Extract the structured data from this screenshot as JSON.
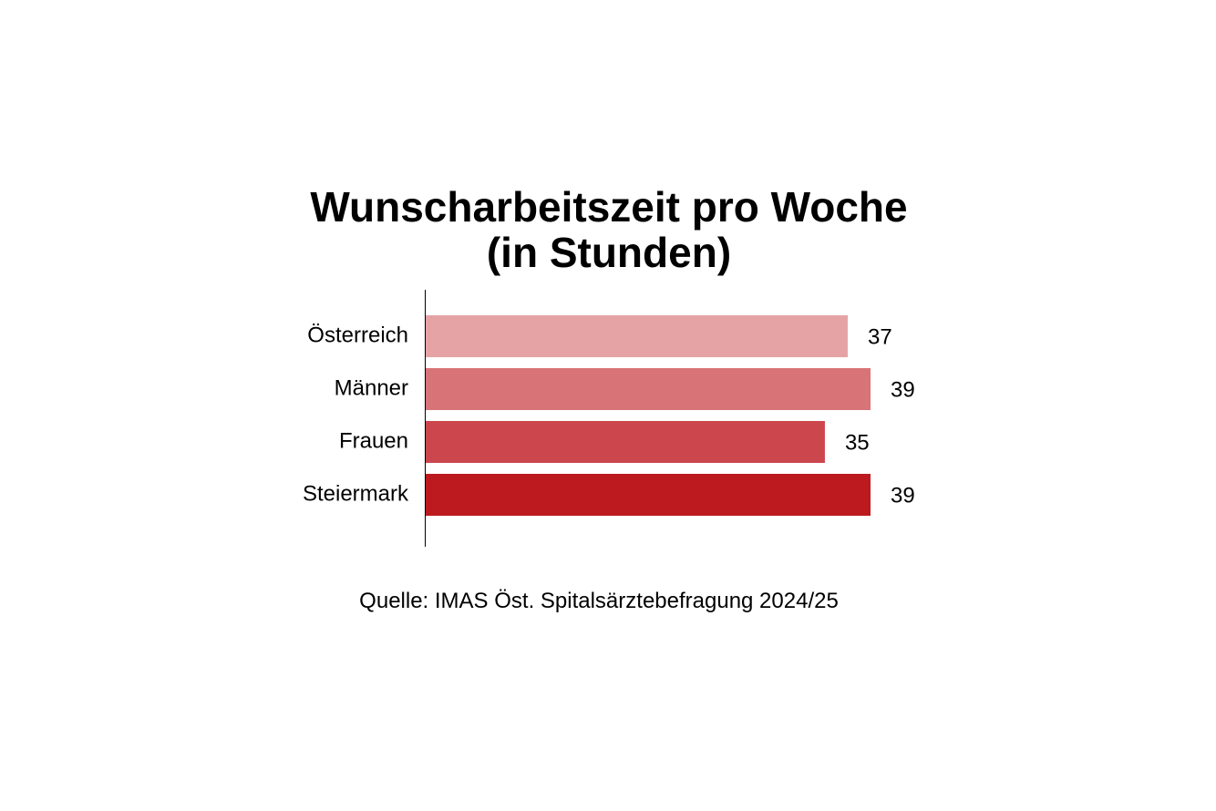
{
  "chart_data": {
    "type": "bar",
    "orientation": "horizontal",
    "title": "Wunscharbeitszeit pro Woche (in Stunden)",
    "categories": [
      "Österreich",
      "Männer",
      "Frauen",
      "Steiermark"
    ],
    "values": [
      37,
      39,
      35,
      39
    ],
    "colors": [
      "#e5a3a5",
      "#d87377",
      "#cb474d",
      "#bd1a20"
    ],
    "source": "Quelle: IMAS Öst. Spitalsärztebefragung 2024/25"
  }
}
